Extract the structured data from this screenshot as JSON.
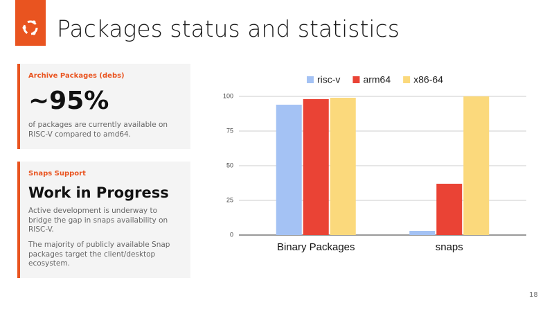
{
  "header": {
    "title": "Packages status and statistics"
  },
  "cards": [
    {
      "label": "Archive Packages (debs)",
      "headline": "~95%",
      "paragraphs": [
        "of packages are currently available on RISC-V compared to amd64."
      ]
    },
    {
      "label": "Snaps Support",
      "headline": "Work in Progress",
      "paragraphs": [
        "Active development is underway to bridge the gap in snaps availability on RISC-V.",
        "The majority of publicly available Snap packages target the client/desktop ecosystem."
      ]
    }
  ],
  "chart_data": {
    "type": "bar",
    "categories": [
      "Binary Packages",
      "snaps"
    ],
    "series": [
      {
        "name": "risc-v",
        "color": "#a4c2f4",
        "values": [
          94,
          3
        ]
      },
      {
        "name": "arm64",
        "color": "#ea4335",
        "values": [
          98,
          37
        ]
      },
      {
        "name": "x86-64",
        "color": "#fbd97c",
        "values": [
          99,
          100
        ]
      }
    ],
    "ylim": [
      0,
      100
    ],
    "yticks": [
      0,
      25,
      50,
      75,
      100
    ],
    "grid": true,
    "legend": "top"
  },
  "footer": {
    "page_number": "18"
  }
}
